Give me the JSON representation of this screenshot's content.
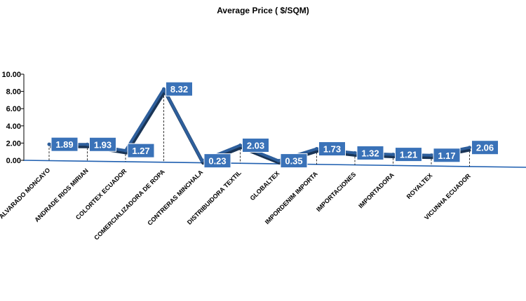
{
  "chart_data": {
    "type": "line",
    "title": "Average Price ( $/SQM)",
    "xlabel": "",
    "ylabel": "",
    "ylim": [
      0,
      10
    ],
    "yticks": [
      "0.00",
      "2.00",
      "4.00",
      "6.00",
      "8.00",
      "10.00"
    ],
    "categories": [
      "ALVARADO MONCAYO",
      "ANDRADE RIOS MIRIAN",
      "COLORTEX ECUADOR",
      "COMERCIALIZADORA DE ROPA",
      "CONTRERAS MINCHALA",
      "DISTRIBUIDORA TEXTIL",
      "GLOBALTEX",
      "IMPORDENIM IMPORTA",
      "IMPORTACIONES",
      "IMPORTADORA",
      "ROYALTEX",
      "VICUNHA ECUADOR"
    ],
    "values": [
      1.89,
      1.93,
      1.27,
      8.32,
      0.23,
      2.03,
      0.35,
      1.73,
      1.32,
      1.21,
      1.17,
      2.06
    ],
    "data_labels": [
      "1.89",
      "1.93",
      "1.27",
      "8.32",
      "0.23",
      "2.03",
      "0.35",
      "1.73",
      "1.32",
      "1.21",
      "1.17",
      "2.06"
    ],
    "grid": false,
    "legend": "none",
    "colors": {
      "line": "#2e5f9c",
      "line_shadow": "#1a3556",
      "label_box": "#3a72b8",
      "label_border": "#ffffff",
      "axis": "#1f5fb0"
    }
  }
}
